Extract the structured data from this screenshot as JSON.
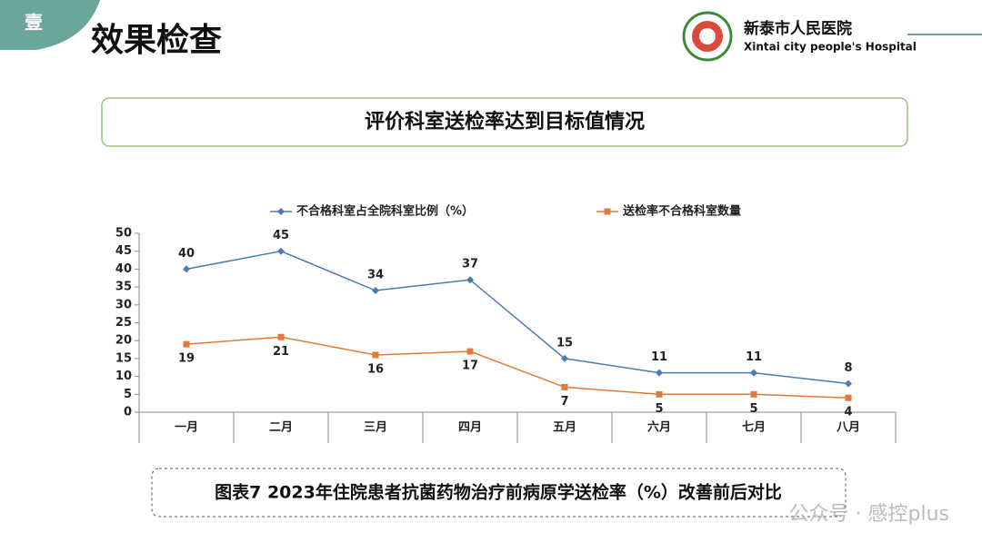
{
  "header": {
    "badge": "壹",
    "title": "效果检查",
    "hospital_name": "新泰市人民医院",
    "hospital_name_en": "Xintai city people's Hospital"
  },
  "box_title": "评价科室送检率达到目标值情况",
  "caption": "图表7 2023年住院患者抗菌药物治疗前病原学送检率（%）改善前后对比",
  "watermark": "公众号 · 感控plus",
  "chart_data": {
    "type": "line",
    "categories": [
      "一月",
      "二月",
      "三月",
      "四月",
      "五月",
      "六月",
      "七月",
      "八月"
    ],
    "series": [
      {
        "name": "不合格科室占全院科室比例（%）",
        "color": "#4a7ab5",
        "marker": "diamond",
        "values": [
          40,
          45,
          34,
          37,
          15,
          11,
          11,
          8
        ]
      },
      {
        "name": "送检率不合格科室数量",
        "color": "#e07b39",
        "marker": "square",
        "values": [
          19,
          21,
          16,
          17,
          7,
          5,
          5,
          4
        ]
      }
    ],
    "ylim": [
      0,
      50
    ],
    "yticks": [
      0,
      5,
      10,
      15,
      20,
      25,
      30,
      35,
      40,
      45,
      50
    ],
    "legend": "top",
    "data_labels": true
  }
}
